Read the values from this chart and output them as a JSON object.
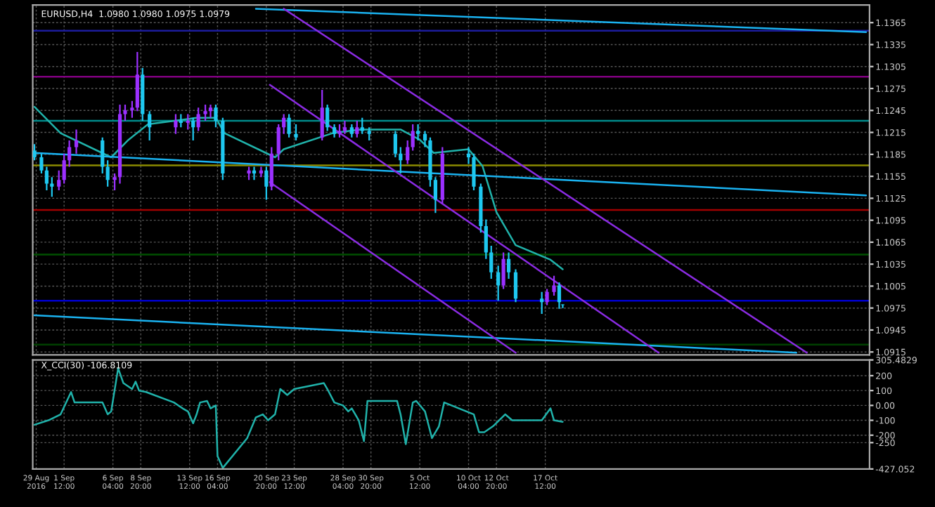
{
  "chart_data": [
    {
      "type": "candlestick",
      "title": "EURUSD,H4  1.0980 1.0980 1.0975 1.0979",
      "x": [
        "2016-08-29T16:00",
        "2016-08-30T08:00",
        "2016-08-30T20:00",
        "2016-08-31T08:00",
        "2016-09-01T00:00",
        "2016-09-01T12:00",
        "2016-09-02T00:00",
        "2016-09-02T16:00",
        "2016-09-05T04:00",
        "2016-09-05T16:00",
        "2016-09-06T08:00",
        "2016-09-06T20:00",
        "2016-09-07T08:00",
        "2016-09-08T00:00",
        "2016-09-08T12:00",
        "2016-09-09T00:00",
        "2016-09-09T16:00",
        "2016-09-12T04:00",
        "2016-09-12T16:00",
        "2016-09-13T08:00",
        "2016-09-13T20:00",
        "2016-09-14T08:00",
        "2016-09-15T00:00",
        "2016-09-15T12:00",
        "2016-09-16T00:00",
        "2016-09-16T16:00",
        "2016-09-19T04:00",
        "2016-09-19T16:00",
        "2016-09-20T08:00",
        "2016-09-20T20:00",
        "2016-09-21T08:00",
        "2016-09-22T00:00",
        "2016-09-22T12:00",
        "2016-09-23T00:00",
        "2016-09-23T16:00",
        "2016-09-26T04:00",
        "2016-09-26T16:00",
        "2016-09-27T08:00",
        "2016-09-27T20:00",
        "2016-09-28T08:00",
        "2016-09-29T00:00",
        "2016-09-29T12:00",
        "2016-09-30T00:00",
        "2016-09-30T16:00",
        "2016-10-03T04:00",
        "2016-10-03T16:00",
        "2016-10-04T08:00",
        "2016-10-04T20:00",
        "2016-10-05T08:00",
        "2016-10-06T00:00",
        "2016-10-06T12:00",
        "2016-10-07T00:00",
        "2016-10-07T16:00",
        "2016-10-10T04:00",
        "2016-10-10T16:00",
        "2016-10-11T08:00",
        "2016-10-11T20:00",
        "2016-10-12T08:00",
        "2016-10-13T00:00",
        "2016-10-13T12:00",
        "2016-10-14T00:00",
        "2016-10-14T16:00",
        "2016-10-17T04:00",
        "2016-10-17T16:00",
        "2016-10-18T08:00",
        "2016-10-18T20:00",
        "2016-10-19T04:00"
      ],
      "ohlc": [
        [
          1.119,
          1.1199,
          1.1177,
          1.1181
        ],
        [
          1.1181,
          1.1186,
          1.1159,
          1.1163
        ],
        [
          1.1163,
          1.1168,
          1.1136,
          1.1145
        ],
        [
          1.1145,
          1.1154,
          1.1127,
          1.1141
        ],
        [
          1.1141,
          1.1163,
          1.1136,
          1.115
        ],
        [
          1.115,
          1.1186,
          1.1145,
          1.1177
        ],
        [
          1.1177,
          1.1204,
          1.1168,
          1.1195
        ],
        [
          1.1195,
          1.1219,
          1.1186,
          1.1204
        ],
        [
          1.1204,
          1.1208,
          1.1159,
          1.1168
        ],
        [
          1.1168,
          1.1177,
          1.1141,
          1.115
        ],
        [
          1.115,
          1.1159,
          1.1136,
          1.1154
        ],
        [
          1.1154,
          1.1253,
          1.1145,
          1.124
        ],
        [
          1.124,
          1.1253,
          1.1231,
          1.1245
        ],
        [
          1.1245,
          1.1258,
          1.1235,
          1.1249
        ],
        [
          1.1249,
          1.1325,
          1.1244,
          1.1294
        ],
        [
          1.1294,
          1.1303,
          1.1231,
          1.124
        ],
        [
          1.124,
          1.1244,
          1.1204,
          1.1222
        ],
        [
          1.1222,
          1.124,
          1.1213,
          1.1231
        ],
        [
          1.1231,
          1.124,
          1.1222,
          1.1228
        ],
        [
          1.1228,
          1.124,
          1.1219,
          1.1231
        ],
        [
          1.1231,
          1.1235,
          1.1204,
          1.1222
        ],
        [
          1.1222,
          1.1249,
          1.1217,
          1.124
        ],
        [
          1.124,
          1.1253,
          1.1231,
          1.1244
        ],
        [
          1.1244,
          1.1253,
          1.1235,
          1.1249
        ],
        [
          1.1249,
          1.1253,
          1.1222,
          1.1231
        ],
        [
          1.1231,
          1.1235,
          1.115,
          1.1159
        ],
        [
          1.1159,
          1.1168,
          1.115,
          1.1163
        ],
        [
          1.1163,
          1.1168,
          1.115,
          1.1159
        ],
        [
          1.1159,
          1.1168,
          1.1154,
          1.1163
        ],
        [
          1.1163,
          1.1168,
          1.1123,
          1.1141
        ],
        [
          1.1141,
          1.1195,
          1.1136,
          1.1186
        ],
        [
          1.1186,
          1.1226,
          1.1177,
          1.1222
        ],
        [
          1.1222,
          1.124,
          1.1213,
          1.1235
        ],
        [
          1.1235,
          1.124,
          1.1208,
          1.1213
        ],
        [
          1.1213,
          1.1226,
          1.1204,
          1.1208
        ],
        [
          1.1208,
          1.1273,
          1.1204,
          1.1249
        ],
        [
          1.1249,
          1.1253,
          1.1217,
          1.1222
        ],
        [
          1.1222,
          1.1226,
          1.1208,
          1.1213
        ],
        [
          1.1213,
          1.1226,
          1.1208,
          1.1217
        ],
        [
          1.1217,
          1.1231,
          1.1213,
          1.1222
        ],
        [
          1.1222,
          1.1226,
          1.1208,
          1.1213
        ],
        [
          1.1213,
          1.1231,
          1.1208,
          1.1222
        ],
        [
          1.1222,
          1.1235,
          1.1213,
          1.1217
        ],
        [
          1.1217,
          1.1222,
          1.1204,
          1.1213
        ],
        [
          1.1213,
          1.1217,
          1.1181,
          1.1186
        ],
        [
          1.1186,
          1.1195,
          1.1159,
          1.1177
        ],
        [
          1.1177,
          1.1204,
          1.1172,
          1.1195
        ],
        [
          1.1195,
          1.1226,
          1.119,
          1.1217
        ],
        [
          1.1217,
          1.1226,
          1.1204,
          1.1213
        ],
        [
          1.1213,
          1.1217,
          1.1195,
          1.1204
        ],
        [
          1.1204,
          1.1208,
          1.1141,
          1.115
        ],
        [
          1.115,
          1.1154,
          1.1105,
          1.1123
        ],
        [
          1.1123,
          1.1195,
          1.1118,
          1.1186
        ],
        [
          1.1186,
          1.1195,
          1.1172,
          1.1181
        ],
        [
          1.1181,
          1.1186,
          1.1136,
          1.1141
        ],
        [
          1.1141,
          1.1145,
          1.1078,
          1.1087
        ],
        [
          1.1087,
          1.1096,
          1.1042,
          1.1051
        ],
        [
          1.1051,
          1.106,
          1.1015,
          1.1024
        ],
        [
          1.1024,
          1.1033,
          1.0985,
          1.1006
        ],
        [
          1.1006,
          1.1051,
          1.1001,
          1.1042
        ],
        [
          1.1042,
          1.1051,
          1.1015,
          1.1024
        ],
        [
          1.1024,
          1.1028,
          1.0983,
          1.0988
        ],
        [
          1.0988,
          1.0997,
          1.0967,
          1.0983
        ],
        [
          1.0983,
          1.1001,
          1.0979,
          1.0997
        ],
        [
          1.0997,
          1.1019,
          1.0992,
          1.1006
        ],
        [
          1.1006,
          1.101,
          1.0974,
          1.0983
        ],
        [
          1.098,
          1.098,
          1.0975,
          1.0979
        ]
      ],
      "colors": [
        "#1ec8f0",
        "#1ec8f0",
        "#1ec8f0",
        "#1ec8f0",
        "#9b30ff",
        "#9b30ff",
        "#9b30ff",
        "#9b30ff",
        "#1ec8f0",
        "#1ec8f0",
        "#9b30ff",
        "#9b30ff",
        "#9b30ff",
        "#9b30ff",
        "#9b30ff",
        "#1ec8f0",
        "#1ec8f0",
        "#9b30ff",
        "#1ec8f0",
        "#9b30ff",
        "#1ec8f0",
        "#9b30ff",
        "#9b30ff",
        "#9b30ff",
        "#1ec8f0",
        "#1ec8f0",
        "#9b30ff",
        "#1ec8f0",
        "#9b30ff",
        "#1ec8f0",
        "#9b30ff",
        "#9b30ff",
        "#9b30ff",
        "#1ec8f0",
        "#1ec8f0",
        "#9b30ff",
        "#1ec8f0",
        "#1ec8f0",
        "#9b30ff",
        "#9b30ff",
        "#1ec8f0",
        "#9b30ff",
        "#1ec8f0",
        "#1ec8f0",
        "#1ec8f0",
        "#1ec8f0",
        "#9b30ff",
        "#9b30ff",
        "#1ec8f0",
        "#1ec8f0",
        "#1ec8f0",
        "#1ec8f0",
        "#9b30ff",
        "#1ec8f0",
        "#1ec8f0",
        "#1ec8f0",
        "#1ec8f0",
        "#1ec8f0",
        "#1ec8f0",
        "#9b30ff",
        "#1ec8f0",
        "#1ec8f0",
        "#1ec8f0",
        "#9b30ff",
        "#9b30ff",
        "#1ec8f0",
        "#1ec8f0"
      ],
      "series": [
        {
          "type": "line",
          "color": "#20b2aa",
          "x": [
            "2016-08-29T16:00",
            "2016-09-01T04:00",
            "2016-09-06T00:00",
            "2016-09-07T16:00",
            "2016-09-09T12:00",
            "2016-09-14T04:00",
            "2016-09-16T00:00",
            "2016-09-16T20:00",
            "2016-09-21T16:00",
            "2016-09-22T12:00",
            "2016-09-27T04:00",
            "2016-09-29T20:00",
            "2016-10-03T16:00",
            "2016-10-05T12:00",
            "2016-10-06T20:00",
            "2016-10-10T04:00",
            "2016-10-11T12:00",
            "2016-10-12T20:00",
            "2016-10-14T16:00",
            "2016-10-18T00:00",
            "2016-10-19T04:00"
          ],
          "values": [
            1.125,
            1.1214,
            1.1181,
            1.1205,
            1.1226,
            1.1235,
            1.1235,
            1.1214,
            1.1181,
            1.1192,
            1.1214,
            1.1219,
            1.1219,
            1.1205,
            1.1187,
            1.1192,
            1.1169,
            1.1106,
            1.1061,
            1.1041,
            1.1028
          ]
        },
        {
          "type": "line",
          "color": "#1ab2f0",
          "x": [
            "2016-08-29T16:00",
            "2016-11-17T04:00"
          ],
          "values": [
            1.1187,
            1.1129
          ]
        },
        {
          "type": "line",
          "color": "#1ab2f0",
          "x": [
            "2016-09-19T20:00",
            "2016-11-17T04:00"
          ],
          "values": [
            1.1384,
            1.1352
          ]
        },
        {
          "type": "line",
          "color": "#1ab2f0",
          "x": [
            "2016-08-29T16:00",
            "2016-11-10T12:00"
          ],
          "values": [
            1.0965,
            1.0914
          ]
        },
        {
          "type": "line",
          "color": "#8a2be2",
          "x": [
            "2016-09-22T12:00",
            "2016-11-11T12:00"
          ],
          "values": [
            1.1384,
            1.0914
          ]
        },
        {
          "type": "line",
          "color": "#8a2be2",
          "x": [
            "2016-09-21T04:00",
            "2016-10-28T08:00"
          ],
          "values": [
            1.128,
            1.0914
          ]
        },
        {
          "type": "line",
          "color": "#8a2be2",
          "x": [
            "2016-09-21T04:00",
            "2016-10-14T16:00"
          ],
          "values": [
            1.1147,
            1.0914
          ]
        }
      ],
      "ref_lines": [
        {
          "axis": "y",
          "value": 1.1354,
          "color": "#1c1c9e"
        },
        {
          "axis": "y",
          "value": 1.1291,
          "color": "#800080"
        },
        {
          "axis": "y",
          "value": 1.1231,
          "color": "#008b8b"
        },
        {
          "axis": "y",
          "value": 1.117,
          "color": "#8b8b00"
        },
        {
          "axis": "y",
          "value": 1.1109,
          "color": "#a00000"
        },
        {
          "axis": "y",
          "value": 1.1048,
          "color": "#005000"
        },
        {
          "axis": "y",
          "value": 1.0985,
          "color": "#0000cd"
        },
        {
          "axis": "y",
          "value": 1.0925,
          "color": "#004000"
        }
      ],
      "xlim": [
        "2016-08-29T12:00",
        "2016-11-17T12:00"
      ],
      "xticks": [
        "2016-08-29T20:00",
        "2016-09-01T12:00",
        "2016-09-06T04:00",
        "2016-09-08T20:00",
        "2016-09-13T12:00",
        "2016-09-16T04:00",
        "2016-09-20T20:00",
        "2016-09-23T12:00",
        "2016-09-28T04:00",
        "2016-09-30T20:00",
        "2016-10-05T12:00",
        "2016-10-10T04:00",
        "2016-10-12T20:00",
        "2016-10-17T12:00"
      ],
      "ylim": [
        1.0911,
        1.1389
      ],
      "yticks": [
        1.0915,
        1.0945,
        1.0975,
        1.1005,
        1.1035,
        1.1065,
        1.1095,
        1.1125,
        1.1155,
        1.1185,
        1.1215,
        1.1245,
        1.1275,
        1.1305,
        1.1335,
        1.1365
      ],
      "grid": true,
      "tick_labels": "y"
    },
    {
      "type": "line",
      "title": "X_CCI(30) -106.8109",
      "x": [
        "2016-08-29T16:00",
        "2016-08-31T00:00",
        "2016-09-01T04:00",
        "2016-09-02T04:00",
        "2016-09-02T12:00",
        "2016-09-05T04:00",
        "2016-09-05T16:00",
        "2016-09-06T00:00",
        "2016-09-06T16:00",
        "2016-09-07T04:00",
        "2016-09-08T00:00",
        "2016-09-08T08:00",
        "2016-09-08T16:00",
        "2016-09-09T08:00",
        "2016-09-12T00:00",
        "2016-09-12T20:00",
        "2016-09-13T08:00",
        "2016-09-13T20:00",
        "2016-09-14T04:00",
        "2016-09-14T12:00",
        "2016-09-15T04:00",
        "2016-09-15T12:00",
        "2016-09-16T00:00",
        "2016-09-16T04:00",
        "2016-09-16T16:00",
        "2016-09-19T00:00",
        "2016-09-19T20:00",
        "2016-09-20T12:00",
        "2016-09-21T00:00",
        "2016-09-21T16:00",
        "2016-09-22T04:00",
        "2016-09-22T20:00",
        "2016-09-23T12:00",
        "2016-09-26T08:00",
        "2016-09-26T16:00",
        "2016-09-27T08:00",
        "2016-09-28T04:00",
        "2016-09-28T16:00",
        "2016-09-29T00:00",
        "2016-09-29T16:00",
        "2016-09-30T04:00",
        "2016-09-30T12:00",
        "2016-10-03T08:00",
        "2016-10-03T16:00",
        "2016-10-04T04:00",
        "2016-10-04T20:00",
        "2016-10-05T04:00",
        "2016-10-06T00:00",
        "2016-10-06T16:00",
        "2016-10-07T08:00",
        "2016-10-07T20:00",
        "2016-10-10T16:00",
        "2016-10-11T04:00",
        "2016-10-11T16:00",
        "2016-10-12T12:00",
        "2016-10-13T16:00",
        "2016-10-14T08:00",
        "2016-10-17T04:00",
        "2016-10-18T00:00",
        "2016-10-18T08:00",
        "2016-10-19T04:00"
      ],
      "series": [
        {
          "color": "#20b2aa",
          "values": [
            -130,
            -100,
            -60,
            90,
            20,
            20,
            -60,
            -40,
            250,
            150,
            110,
            160,
            100,
            90,
            20,
            -20,
            -40,
            -120,
            -60,
            20,
            30,
            -20,
            0,
            -340,
            -420,
            -220,
            -80,
            -60,
            -100,
            -60,
            110,
            70,
            110,
            150,
            110,
            20,
            0,
            -40,
            -20,
            -100,
            -240,
            30,
            30,
            -60,
            -260,
            20,
            30,
            -40,
            -220,
            -140,
            20,
            -60,
            -180,
            -180,
            -140,
            -60,
            -100,
            -100,
            -20,
            -100,
            -110
          ]
        }
      ],
      "xlim": [
        "2016-08-29T12:00",
        "2016-11-17T12:00"
      ],
      "xticks": [
        {
          "value": "2016-08-29T20:00",
          "label": "29 Aug 2016"
        },
        {
          "value": "2016-09-01T12:00",
          "label": "1 Sep 12:00"
        },
        {
          "value": "2016-09-06T04:00",
          "label": "6 Sep 04:00"
        },
        {
          "value": "2016-09-08T20:00",
          "label": "8 Sep 20:00"
        },
        {
          "value": "2016-09-13T12:00",
          "label": "13 Sep 12:00"
        },
        {
          "value": "2016-09-16T04:00",
          "label": "16 Sep 04:00"
        },
        {
          "value": "2016-09-20T20:00",
          "label": "20 Sep 20:00"
        },
        {
          "value": "2016-09-23T12:00",
          "label": "23 Sep 12:00"
        },
        {
          "value": "2016-09-28T04:00",
          "label": "28 Sep 04:00"
        },
        {
          "value": "2016-09-30T20:00",
          "label": "30 Sep 20:00"
        },
        {
          "value": "2016-10-05T12:00",
          "label": "5 Oct 12:00"
        },
        {
          "value": "2016-10-10T04:00",
          "label": "10 Oct 04:00"
        },
        {
          "value": "2016-10-12T20:00",
          "label": "12 Oct 20:00"
        },
        {
          "value": "2016-10-17T12:00",
          "label": "17 Oct 12:00"
        }
      ],
      "ylim": [
        -427.052,
        305.4829
      ],
      "yticks": [
        -427.052,
        -250,
        -200,
        -100,
        {
          "value": 0,
          "label": "0.00"
        },
        100,
        200,
        305.4829
      ],
      "grid": true
    }
  ]
}
